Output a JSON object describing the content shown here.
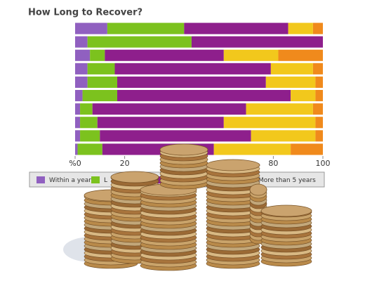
{
  "chart_data": {
    "type": "stacked-bar-horizontal",
    "title": "How Long to Recover?",
    "categories": [
      null,
      null,
      null,
      null,
      null,
      null,
      null,
      null,
      null,
      null
    ],
    "series": [
      {
        "name": "Within a year",
        "color": "#9060c0",
        "values": [
          13,
          5,
          6,
          5,
          5,
          3,
          2,
          2,
          2,
          1
        ]
      },
      {
        "name": null,
        "color": "#7cc21e",
        "values": [
          31,
          42,
          6,
          11,
          12,
          14,
          5,
          7,
          8,
          10
        ]
      },
      {
        "name": null,
        "color": "#8e1f8c",
        "values": [
          42,
          53,
          48,
          63,
          60,
          70,
          62,
          51,
          61,
          45
        ]
      },
      {
        "name": null,
        "color": "#f2c81c",
        "values": [
          10,
          0,
          22,
          17,
          20,
          10,
          27,
          37,
          26,
          31
        ]
      },
      {
        "name": "More than 5 years",
        "color": "#f08a1c",
        "values": [
          4,
          0,
          18,
          4,
          3,
          3,
          4,
          3,
          3,
          13
        ]
      }
    ],
    "legend_partial_label": "L",
    "xlim": [
      0,
      100
    ],
    "xticks": [
      {
        "value": 0,
        "label": "%0"
      },
      20,
      80,
      100
    ]
  }
}
